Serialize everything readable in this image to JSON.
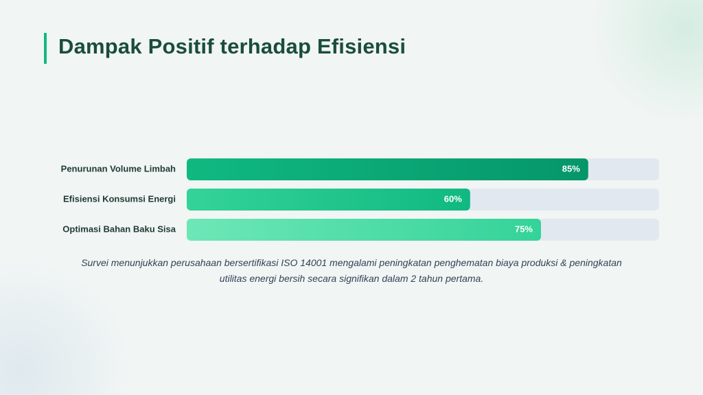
{
  "chart_data": {
    "type": "hbar",
    "title": "Dampak Positif terhadap Efisiensi",
    "categories": [
      "Penurunan Volume Limbah",
      "Efisiensi Konsumsi Energi",
      "Optimasi Bahan Baku Sisa"
    ],
    "values": [
      85,
      60,
      75
    ],
    "value_labels": [
      "85%",
      "60%",
      "75%"
    ],
    "colors": [
      [
        "#10b981",
        "#059669"
      ],
      [
        "#34d399",
        "#10b981"
      ],
      [
        "#6ee7b7",
        "#34d399"
      ]
    ],
    "track_color": "#e2e8f0",
    "xlim": [
      0,
      100
    ],
    "caption": "Survei menunjukkan perusahaan bersertifikasi ISO 14001 mengalami peningkatan penghematan biaya produksi & peningkatan utilitas energi bersih secara signifikan dalam 2 tahun pertama."
  }
}
